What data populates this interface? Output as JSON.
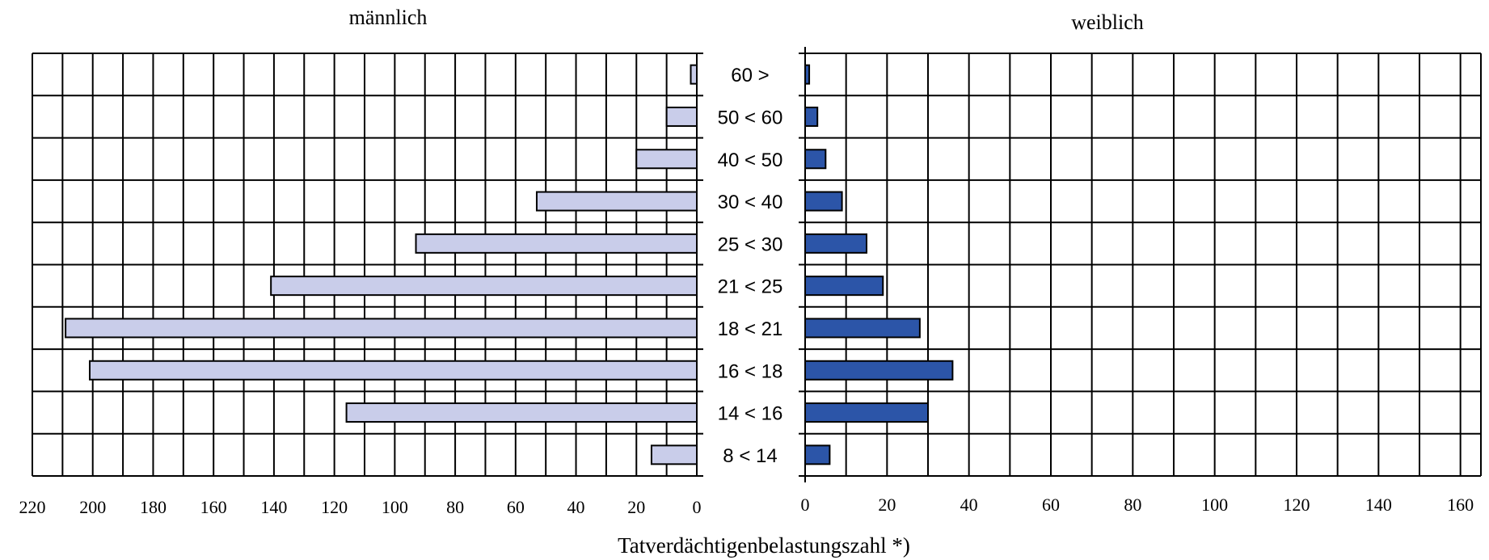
{
  "chart_data": [
    {
      "type": "bar",
      "orientation": "horizontal",
      "direction": "reversed",
      "title": "männlich",
      "categories": [
        "60 >",
        "50 < 60",
        "40 < 50",
        "30 < 40",
        "25 < 30",
        "21 < 25",
        "18 < 21",
        "16 < 18",
        "14 < 16",
        "8 < 14"
      ],
      "values": [
        2,
        10,
        20,
        53,
        93,
        141,
        209,
        201,
        116,
        15
      ],
      "xlim": [
        0,
        220
      ],
      "ticks": [
        "0",
        "20",
        "40",
        "60",
        "80",
        "100",
        "120",
        "140",
        "160",
        "180",
        "200",
        "220"
      ],
      "grid": true,
      "bar_color": "#c9cdea"
    },
    {
      "type": "bar",
      "orientation": "horizontal",
      "title": "weiblich",
      "categories": [
        "60 >",
        "50 < 60",
        "40 < 50",
        "30 < 40",
        "25 < 30",
        "21 < 25",
        "18 < 21",
        "16 < 18",
        "14 < 16",
        "8 < 14"
      ],
      "values": [
        1,
        3,
        5,
        9,
        15,
        19,
        28,
        36,
        30,
        6
      ],
      "xlim": [
        0,
        165
      ],
      "ticks": [
        "0",
        "20",
        "40",
        "60",
        "80",
        "100",
        "120",
        "140",
        "160"
      ],
      "grid": true,
      "bar_color": "#2c55a8"
    }
  ],
  "xlabel": "Tatverdächtigenbelastungszahl *)"
}
